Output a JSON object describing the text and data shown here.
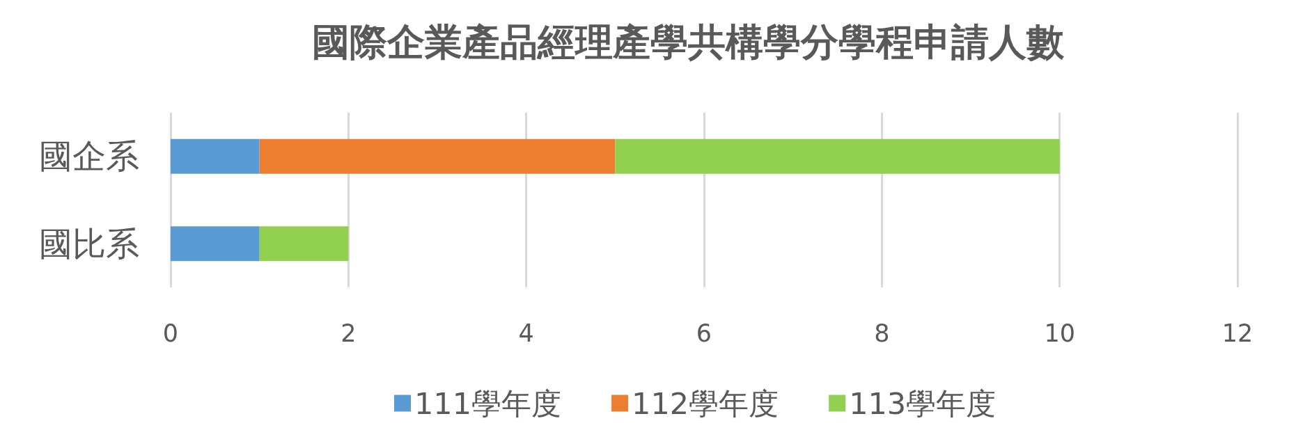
{
  "chart_data": {
    "type": "bar",
    "orientation": "horizontal",
    "stacked": true,
    "title": "國際企業產品經理產學共構學分學程申請人數",
    "categories": [
      "國企系",
      "國比系"
    ],
    "series": [
      {
        "name": "111學年度",
        "color": "#5b9bd5",
        "values": [
          1,
          1
        ]
      },
      {
        "name": "112學年度",
        "color": "#ed7d31",
        "values": [
          4,
          null
        ]
      },
      {
        "name": "113學年度",
        "color": "#92d050",
        "values": [
          5,
          1
        ]
      }
    ],
    "xlim": [
      0,
      12
    ],
    "xticks": [
      0,
      2,
      4,
      6,
      8,
      10,
      12
    ],
    "grid": "x",
    "legend": "bottom"
  }
}
